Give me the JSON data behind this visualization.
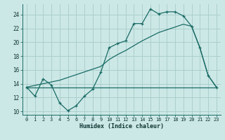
{
  "bg_color": "#cce8e6",
  "grid_color": "#aacfcd",
  "line_color": "#1a6b65",
  "xlabel": "Humidex (Indice chaleur)",
  "xlim": [
    -0.5,
    23.5
  ],
  "ylim": [
    9.5,
    25.5
  ],
  "yticks": [
    10,
    12,
    14,
    16,
    18,
    20,
    22,
    24
  ],
  "xticks": [
    0,
    1,
    2,
    3,
    4,
    5,
    6,
    7,
    8,
    9,
    10,
    11,
    12,
    13,
    14,
    15,
    16,
    17,
    18,
    19,
    20,
    21,
    22,
    23
  ],
  "line1_x": [
    0,
    1,
    2,
    3,
    4,
    5,
    6,
    7,
    8,
    9,
    10,
    11,
    12,
    13,
    14,
    15,
    16,
    17,
    18,
    19,
    20,
    21,
    22,
    23
  ],
  "line1_y": [
    13.5,
    12.2,
    14.7,
    13.8,
    11.2,
    10.1,
    10.8,
    12.2,
    13.2,
    15.7,
    19.2,
    19.8,
    20.2,
    22.7,
    22.7,
    24.8,
    24.1,
    24.4,
    24.4,
    23.8,
    22.3,
    19.2,
    15.2,
    13.5
  ],
  "line2_x": [
    0,
    4,
    9,
    10,
    11,
    12,
    13,
    14,
    15,
    16,
    17,
    18,
    19,
    20,
    21,
    22,
    23
  ],
  "line2_y": [
    13.5,
    14.5,
    16.5,
    17.5,
    18.2,
    18.8,
    19.5,
    20.2,
    20.8,
    21.4,
    21.8,
    22.2,
    22.6,
    22.3,
    19.2,
    15.2,
    13.5
  ],
  "line3_x": [
    0,
    23
  ],
  "line3_y": [
    13.5,
    13.5
  ]
}
